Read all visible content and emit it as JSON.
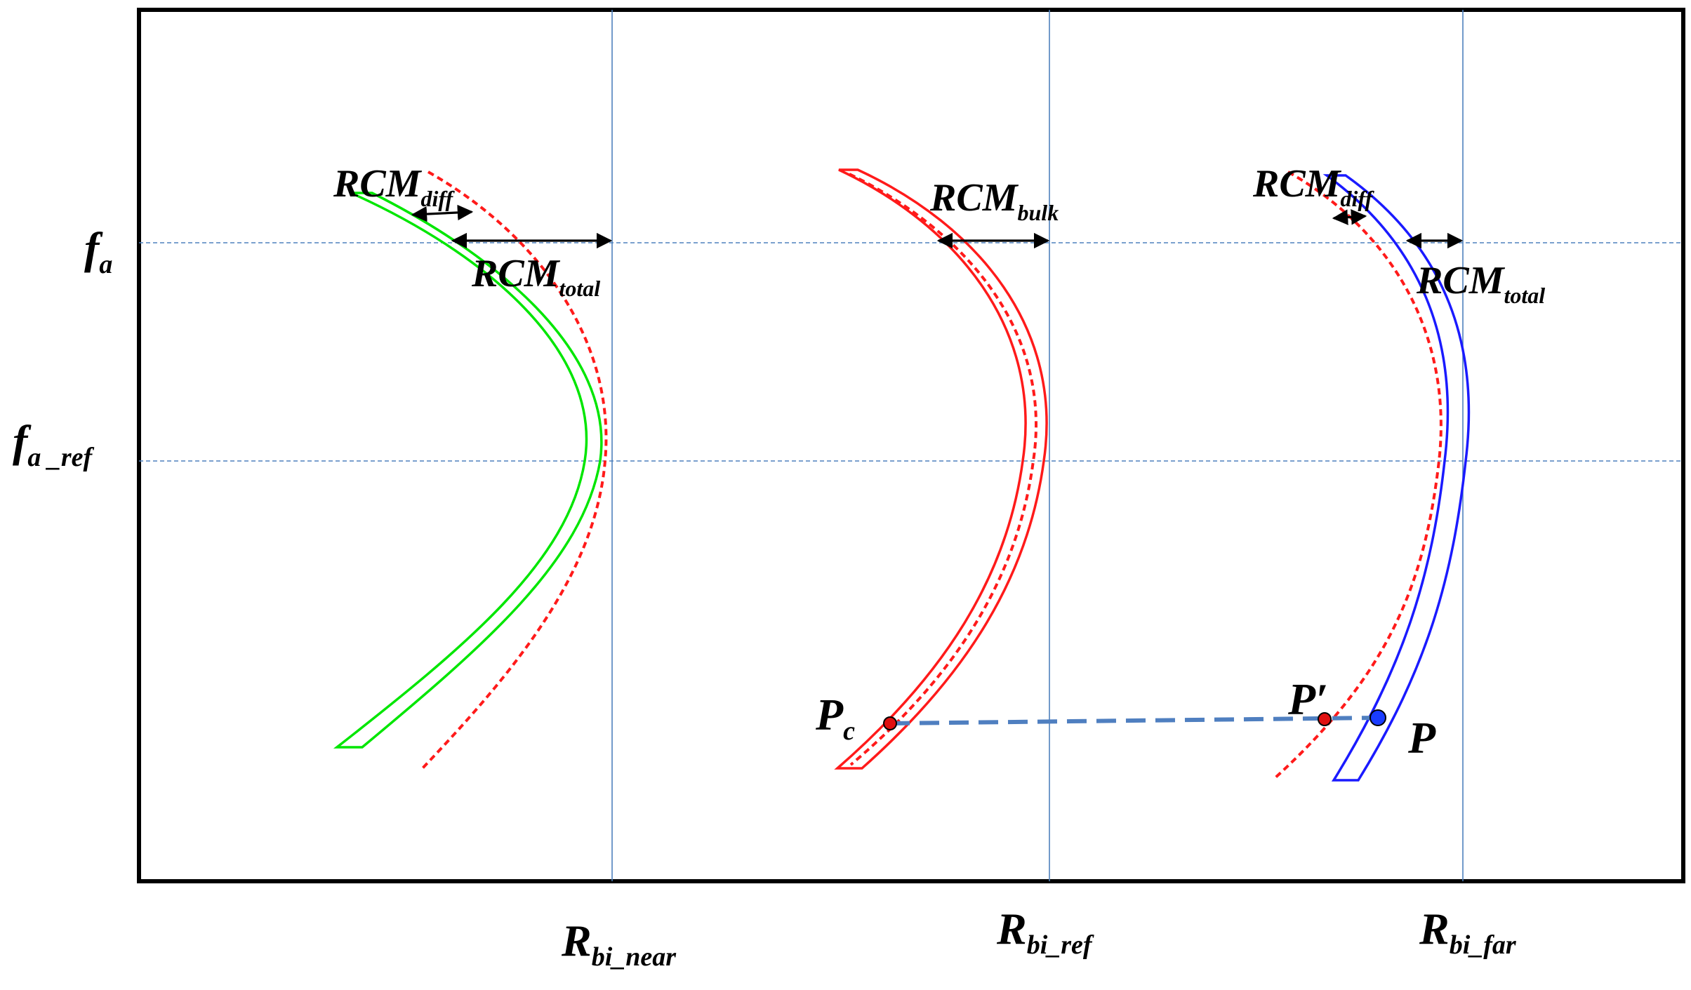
{
  "colors": {
    "frame": "#000000",
    "guide": "#4f81bd",
    "near_curve": "#00e600",
    "ref_curve": "#ff1a1a",
    "far_curve": "#1a1aff",
    "dotted": "#ff1a1a",
    "link_line": "#4f7fc0",
    "point_red": "#e01010",
    "point_blue": "#1a3cff"
  },
  "y_axis": {
    "fa": {
      "main": "f",
      "sub": "a"
    },
    "fa_ref": {
      "main": "f",
      "sub": "a _ref"
    }
  },
  "x_axis": {
    "near": {
      "main": "R",
      "sub": "bi_near"
    },
    "ref": {
      "main": "R",
      "sub": "bi_ref"
    },
    "far": {
      "main": "R",
      "sub": "bi_far"
    }
  },
  "annotations": {
    "near_diff": {
      "main": "RCM",
      "sub": "diff"
    },
    "near_total": {
      "main": "RCM",
      "sub": "total"
    },
    "bulk": {
      "main": "RCM",
      "sub": "bulk"
    },
    "far_diff": {
      "main": "RCM",
      "sub": "diff"
    },
    "far_total": {
      "main": "RCM",
      "sub": "total"
    }
  },
  "points": {
    "pc": {
      "main": "P",
      "sub": "c"
    },
    "p_prime": "P′",
    "p": "P"
  }
}
